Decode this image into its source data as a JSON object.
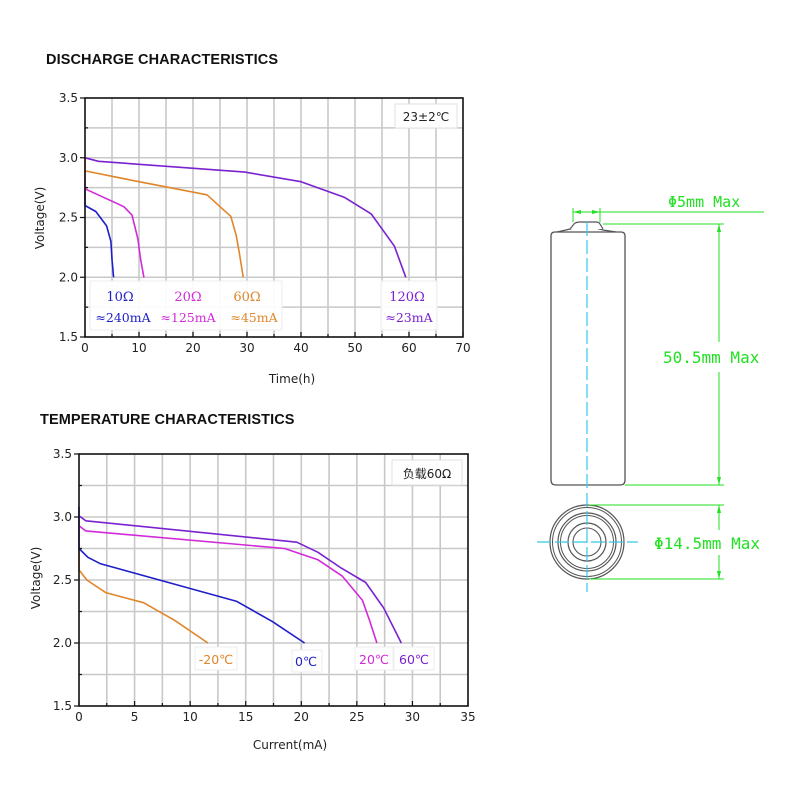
{
  "sections": {
    "discharge_title": "DISCHARGE CHARACTERISTICS",
    "temperature_title": "TEMPERATURE CHARACTERISTICS"
  },
  "colors": {
    "blue": "#1f1fc8",
    "magenta": "#d22ad8",
    "orange": "#e0862a",
    "purple": "#7a22d0",
    "grid": "#c8c8c8",
    "dimension_green": "#22e022",
    "centerline_cyan": "#38c8e8"
  },
  "chart_data": [
    {
      "type": "line",
      "title": "DISCHARGE CHARACTERISTICS",
      "xlabel": "Time(h)",
      "ylabel": "Voltage(V)",
      "xlim": [
        0,
        70
      ],
      "ylim": [
        1.5,
        3.5
      ],
      "xticks": [
        "0",
        "10",
        "20",
        "30",
        "40",
        "50",
        "60",
        "70"
      ],
      "yticks": [
        "1.5",
        "2.0",
        "2.5",
        "3.0",
        "3.5"
      ],
      "grid": true,
      "annotation": "23±2℃",
      "annotation_position": "top-right",
      "series": [
        {
          "name": "10Ω",
          "sublabel": "≈240mA",
          "color": "#1f1fc8",
          "x": [
            0,
            0,
            2.0,
            4.0,
            4.8,
            5.0,
            5.3
          ],
          "y": [
            2.75,
            2.6,
            2.55,
            2.43,
            2.3,
            2.15,
            2.0
          ]
        },
        {
          "name": "20Ω",
          "sublabel": "≈125mA",
          "color": "#d22ad8",
          "x": [
            0,
            0,
            7.2,
            8.7,
            9.8,
            10.3,
            10.9
          ],
          "y": [
            2.9,
            2.74,
            2.59,
            2.52,
            2.32,
            2.15,
            2.0
          ]
        },
        {
          "name": "60Ω",
          "sublabel": "≈45mA",
          "color": "#e0862a",
          "x": [
            0,
            0,
            10,
            22.6,
            25.0,
            27.0,
            28.0,
            28.6,
            29.3
          ],
          "y": [
            3.0,
            2.89,
            2.8,
            2.69,
            2.59,
            2.51,
            2.35,
            2.2,
            2.0
          ]
        },
        {
          "name": "120Ω",
          "sublabel": "≈23mA",
          "color": "#7a22d0",
          "x": [
            0,
            2.5,
            29.6,
            40,
            48,
            53,
            57.3,
            59.4
          ],
          "y": [
            3.0,
            2.97,
            2.88,
            2.8,
            2.67,
            2.53,
            2.26,
            2.0
          ]
        }
      ]
    },
    {
      "type": "line",
      "title": "TEMPERATURE CHARACTERISTICS",
      "xlabel": "Current(mA)",
      "ylabel": "Voltage(V)",
      "xlim": [
        0,
        35
      ],
      "ylim": [
        1.5,
        3.5
      ],
      "xticks": [
        "0",
        "5",
        "10",
        "15",
        "20",
        "25",
        "30",
        "35"
      ],
      "yticks": [
        "1.5",
        "2.0",
        "2.5",
        "3.0",
        "3.5"
      ],
      "grid": true,
      "annotation": "负载60Ω",
      "annotation_position": "top-right",
      "series": [
        {
          "name": "-20℃",
          "color": "#e0862a",
          "x": [
            0,
            0,
            0.7,
            2.4,
            5.8,
            8.6,
            11.6
          ],
          "y": [
            2.75,
            2.58,
            2.5,
            2.4,
            2.32,
            2.18,
            2.0
          ]
        },
        {
          "name": "0℃",
          "color": "#1f1fc8",
          "x": [
            0,
            0,
            0.8,
            1.9,
            14.2,
            17.4,
            20.3
          ],
          "y": [
            3.08,
            2.75,
            2.68,
            2.63,
            2.33,
            2.17,
            2.0
          ]
        },
        {
          "name": "20℃",
          "color": "#d22ad8",
          "x": [
            0,
            0.6,
            18.5,
            21.5,
            23.7,
            25.5,
            26.1,
            26.8
          ],
          "y": [
            2.93,
            2.89,
            2.75,
            2.66,
            2.53,
            2.34,
            2.19,
            2.0
          ]
        },
        {
          "name": "60℃",
          "color": "#7a22d0",
          "x": [
            0,
            0.6,
            19.6,
            21.5,
            23.5,
            25.8,
            27.4,
            29.0
          ],
          "y": [
            3.01,
            2.97,
            2.8,
            2.72,
            2.6,
            2.48,
            2.28,
            2.0
          ]
        }
      ]
    }
  ],
  "dimensions": {
    "terminal_diameter": "Φ5mm Max",
    "length": "50.5mm Max",
    "body_diameter": "Φ14.5mm Max"
  }
}
